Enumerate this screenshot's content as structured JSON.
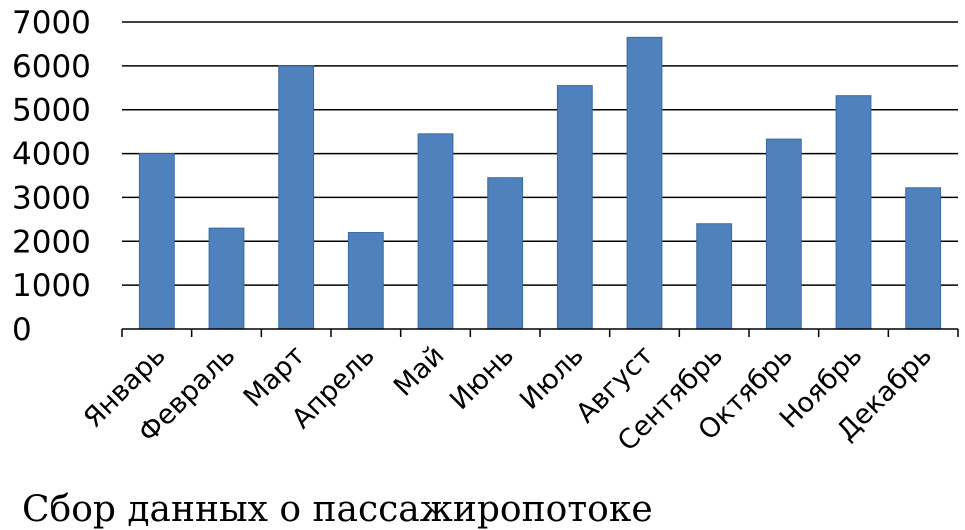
{
  "chart_data": {
    "type": "bar",
    "categories": [
      "Январь",
      "Февраль",
      "Март",
      "Апрель",
      "Май",
      "Июнь",
      "Июль",
      "Август",
      "Сентябрь",
      "Октябрь",
      "Ноябрь",
      "Декабрь"
    ],
    "values": [
      4000,
      2300,
      6000,
      2200,
      4450,
      3450,
      5550,
      6650,
      2400,
      4330,
      5320,
      3220
    ],
    "ylim": [
      0,
      7000
    ],
    "yticks": [
      "0",
      "1000",
      "2000",
      "3000",
      "4000",
      "5000",
      "6000",
      "7000"
    ],
    "grid": true,
    "bar_color": "#4f81bd",
    "title": "",
    "xlabel": "",
    "ylabel": ""
  },
  "caption": "Сбор данных о пассажиропотоке"
}
